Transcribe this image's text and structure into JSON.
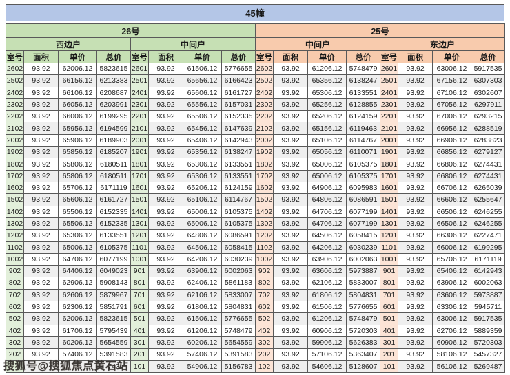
{
  "title": "45幢",
  "watermark_text": "搜狐号@搜狐焦点黄石站",
  "colors": {
    "title_bg": "#b4c6e7",
    "building_26_bg": "#c6e0b4",
    "building_25_bg": "#f8cbad",
    "room_cell_26_bg": "#e2efda",
    "room_cell_25_bg": "#fce4d6",
    "row_alt_bg": "#efefef",
    "border": "#595959"
  },
  "buildings": [
    {
      "name": "26号"
    },
    {
      "name": "25号"
    }
  ],
  "column_headers": [
    "室号",
    "面积",
    "单价",
    "总价"
  ],
  "groups": [
    {
      "building": "26号",
      "unit": "西边户",
      "rows": [
        [
          "2602",
          "93.92",
          "62006.12",
          "5823615"
        ],
        [
          "2502",
          "93.92",
          "66156.12",
          "6213383"
        ],
        [
          "2402",
          "93.92",
          "66106.12",
          "6208687"
        ],
        [
          "2302",
          "93.92",
          "66056.12",
          "6203991"
        ],
        [
          "2202",
          "93.92",
          "66006.12",
          "6199295"
        ],
        [
          "2102",
          "93.92",
          "65956.12",
          "6194599"
        ],
        [
          "2002",
          "93.92",
          "65906.12",
          "6189903"
        ],
        [
          "1902",
          "93.92",
          "65856.12",
          "6185207"
        ],
        [
          "1802",
          "93.92",
          "65806.12",
          "6180511"
        ],
        [
          "1702",
          "93.92",
          "65806.12",
          "6180511"
        ],
        [
          "1602",
          "93.92",
          "65706.12",
          "6171119"
        ],
        [
          "1502",
          "93.92",
          "65606.12",
          "6161727"
        ],
        [
          "1402",
          "93.92",
          "65506.12",
          "6152335"
        ],
        [
          "1302",
          "93.92",
          "65506.12",
          "6152335"
        ],
        [
          "1202",
          "93.92",
          "65306.12",
          "6133551"
        ],
        [
          "1102",
          "93.92",
          "65006.12",
          "6105375"
        ],
        [
          "1002",
          "93.92",
          "64706.12",
          "6077199"
        ],
        [
          "902",
          "93.92",
          "64406.12",
          "6049023"
        ],
        [
          "802",
          "93.92",
          "62906.12",
          "5908143"
        ],
        [
          "702",
          "93.92",
          "62606.12",
          "5879967"
        ],
        [
          "602",
          "93.92",
          "62306.12",
          "5851791"
        ],
        [
          "502",
          "93.92",
          "62006.12",
          "5823615"
        ],
        [
          "402",
          "93.92",
          "61706.12",
          "5795439"
        ],
        [
          "302",
          "93.92",
          "60206.12",
          "5654559"
        ],
        [
          "202",
          "93.92",
          "57406.12",
          "5391583"
        ],
        [
          "",
          "",
          "",
          "743"
        ]
      ]
    },
    {
      "building": "26号",
      "unit": "中间户",
      "rows": [
        [
          "2601",
          "93.92",
          "61506.12",
          "5776655"
        ],
        [
          "2501",
          "93.92",
          "65656.12",
          "6166423"
        ],
        [
          "2401",
          "93.92",
          "65606.12",
          "6161727"
        ],
        [
          "2301",
          "93.92",
          "65556.12",
          "6157031"
        ],
        [
          "2201",
          "93.92",
          "65506.12",
          "6152335"
        ],
        [
          "2101",
          "93.92",
          "65456.12",
          "6147639"
        ],
        [
          "2001",
          "93.92",
          "65406.12",
          "6142943"
        ],
        [
          "1901",
          "93.92",
          "65356.12",
          "6138247"
        ],
        [
          "1801",
          "93.92",
          "65306.12",
          "6133551"
        ],
        [
          "1701",
          "93.92",
          "65306.12",
          "6133551"
        ],
        [
          "1601",
          "93.92",
          "65206.12",
          "6124159"
        ],
        [
          "1501",
          "93.92",
          "65106.12",
          "6114767"
        ],
        [
          "1401",
          "93.92",
          "65006.12",
          "6105375"
        ],
        [
          "1301",
          "93.92",
          "65006.12",
          "6105375"
        ],
        [
          "1201",
          "93.92",
          "64806.12",
          "6086591"
        ],
        [
          "1101",
          "93.92",
          "64506.12",
          "6058415"
        ],
        [
          "1001",
          "93.92",
          "64206.12",
          "6030239"
        ],
        [
          "901",
          "93.92",
          "63906.12",
          "6002063"
        ],
        [
          "801",
          "93.92",
          "62406.12",
          "5861183"
        ],
        [
          "701",
          "93.92",
          "62106.12",
          "5833007"
        ],
        [
          "601",
          "93.92",
          "61806.12",
          "5804831"
        ],
        [
          "501",
          "93.92",
          "61506.12",
          "5776655"
        ],
        [
          "401",
          "93.92",
          "61206.12",
          "5748479"
        ],
        [
          "301",
          "93.92",
          "60206.12",
          "5654559"
        ],
        [
          "201",
          "93.92",
          "57406.12",
          "5391583"
        ],
        [
          "101",
          "93.92",
          "54906.12",
          "5156783"
        ]
      ]
    },
    {
      "building": "25号",
      "unit": "中间户",
      "rows": [
        [
          "2602",
          "93.92",
          "61206.12",
          "5748479"
        ],
        [
          "2502",
          "93.92",
          "65356.12",
          "6138247"
        ],
        [
          "2402",
          "93.92",
          "65306.12",
          "6133551"
        ],
        [
          "2302",
          "93.92",
          "65256.12",
          "6128855"
        ],
        [
          "2202",
          "93.92",
          "65206.12",
          "6124159"
        ],
        [
          "2102",
          "93.92",
          "65156.12",
          "6119463"
        ],
        [
          "2002",
          "93.92",
          "65106.12",
          "6114767"
        ],
        [
          "1902",
          "93.92",
          "65056.12",
          "6110071"
        ],
        [
          "1802",
          "93.92",
          "65006.12",
          "6105375"
        ],
        [
          "1702",
          "93.92",
          "65006.12",
          "6105375"
        ],
        [
          "1602",
          "93.92",
          "64906.12",
          "6095983"
        ],
        [
          "1502",
          "93.92",
          "64806.12",
          "6086591"
        ],
        [
          "1402",
          "93.92",
          "64706.12",
          "6077199"
        ],
        [
          "1302",
          "93.92",
          "64706.12",
          "6077199"
        ],
        [
          "1202",
          "93.92",
          "64506.12",
          "6058415"
        ],
        [
          "1102",
          "93.92",
          "64206.12",
          "6030239"
        ],
        [
          "1002",
          "93.92",
          "63906.12",
          "6002063"
        ],
        [
          "902",
          "93.92",
          "63606.12",
          "5973887"
        ],
        [
          "802",
          "93.92",
          "62106.12",
          "5833007"
        ],
        [
          "702",
          "93.92",
          "61806.12",
          "5804831"
        ],
        [
          "602",
          "93.92",
          "61506.12",
          "5776655"
        ],
        [
          "502",
          "93.92",
          "61206.12",
          "5748479"
        ],
        [
          "402",
          "93.92",
          "60906.12",
          "5720303"
        ],
        [
          "302",
          "93.92",
          "59906.12",
          "5626383"
        ],
        [
          "202",
          "93.92",
          "57106.12",
          "5363407"
        ],
        [
          "102",
          "93.92",
          "54606.12",
          "5128607"
        ]
      ]
    },
    {
      "building": "25号",
      "unit": "东边户",
      "rows": [
        [
          "2601",
          "93.92",
          "63006.12",
          "5917535"
        ],
        [
          "2501",
          "93.92",
          "67156.12",
          "6307303"
        ],
        [
          "2401",
          "93.92",
          "67106.12",
          "6302607"
        ],
        [
          "2301",
          "93.92",
          "67056.12",
          "6297911"
        ],
        [
          "2201",
          "93.92",
          "67006.12",
          "6293215"
        ],
        [
          "2101",
          "93.92",
          "66956.12",
          "6288519"
        ],
        [
          "2001",
          "93.92",
          "66906.12",
          "6283823"
        ],
        [
          "1901",
          "93.92",
          "66856.12",
          "6279127"
        ],
        [
          "1801",
          "93.92",
          "66806.12",
          "6274431"
        ],
        [
          "1701",
          "93.92",
          "66806.12",
          "6274431"
        ],
        [
          "1601",
          "93.92",
          "66706.12",
          "6265039"
        ],
        [
          "1501",
          "93.92",
          "66606.12",
          "6255647"
        ],
        [
          "1401",
          "93.92",
          "66506.12",
          "6246255"
        ],
        [
          "1301",
          "93.92",
          "66506.12",
          "6246255"
        ],
        [
          "1201",
          "93.92",
          "66306.12",
          "6227471"
        ],
        [
          "1101",
          "93.92",
          "66006.12",
          "6199295"
        ],
        [
          "1001",
          "93.92",
          "65706.12",
          "6171119"
        ],
        [
          "901",
          "93.92",
          "65406.12",
          "6142943"
        ],
        [
          "801",
          "93.92",
          "63906.12",
          "6002063"
        ],
        [
          "701",
          "93.92",
          "63606.12",
          "5973887"
        ],
        [
          "601",
          "93.92",
          "63306.12",
          "5945711"
        ],
        [
          "501",
          "93.92",
          "63006.12",
          "5917535"
        ],
        [
          "401",
          "93.92",
          "62706.12",
          "5889359"
        ],
        [
          "301",
          "93.92",
          "60906.12",
          "5720303"
        ],
        [
          "201",
          "93.92",
          "58106.12",
          "5457327"
        ],
        [
          "101",
          "93.92",
          "56106.12",
          "5269487"
        ]
      ]
    }
  ]
}
